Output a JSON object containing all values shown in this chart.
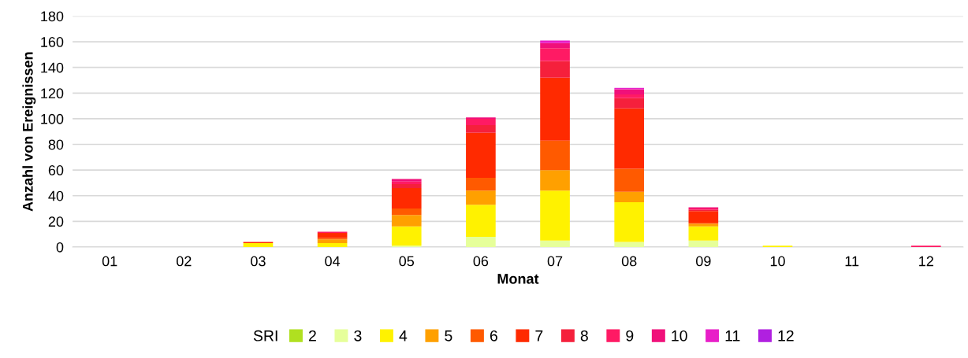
{
  "chart_data": {
    "type": "bar",
    "stacked": true,
    "xlabel": "Monat",
    "ylabel": "Anzahl von Ereignissen",
    "legend_title": "SRI",
    "legend": "bottom",
    "grid": "y",
    "categories": [
      "01",
      "02",
      "03",
      "04",
      "05",
      "06",
      "07",
      "08",
      "09",
      "10",
      "11",
      "12"
    ],
    "ylim": [
      0,
      180
    ],
    "yticks": [
      0,
      20,
      40,
      60,
      80,
      100,
      120,
      140,
      160,
      180
    ],
    "series": [
      {
        "name": "2",
        "color": "#b0e020",
        "values": [
          0,
          0,
          0,
          0,
          0,
          0,
          0,
          0,
          0,
          0,
          0,
          0
        ]
      },
      {
        "name": "3",
        "color": "#e6ff9a",
        "values": [
          0,
          0,
          0,
          0,
          1,
          8,
          5,
          4,
          5,
          0,
          0,
          0
        ]
      },
      {
        "name": "4",
        "color": "#fff200",
        "values": [
          0,
          0,
          3,
          3,
          15,
          25,
          39,
          31,
          11,
          1,
          0,
          0
        ]
      },
      {
        "name": "5",
        "color": "#ffa000",
        "values": [
          0,
          0,
          0,
          3,
          9,
          11,
          16,
          8,
          2,
          0,
          0,
          0
        ]
      },
      {
        "name": "6",
        "color": "#ff5a00",
        "values": [
          0,
          0,
          0,
          1,
          5,
          10,
          23,
          18,
          1,
          0,
          0,
          0
        ]
      },
      {
        "name": "7",
        "color": "#ff2a00",
        "values": [
          0,
          0,
          1,
          4,
          16,
          35,
          49,
          47,
          9,
          0,
          0,
          0
        ]
      },
      {
        "name": "8",
        "color": "#f5203c",
        "values": [
          0,
          0,
          0,
          0,
          3,
          6,
          13,
          8,
          1,
          0,
          0,
          0
        ]
      },
      {
        "name": "9",
        "color": "#ff1a64",
        "values": [
          0,
          0,
          0,
          1,
          2,
          5,
          10,
          3,
          1,
          0,
          0,
          1
        ]
      },
      {
        "name": "10",
        "color": "#f0107a",
        "values": [
          0,
          0,
          0,
          0,
          2,
          1,
          4,
          4,
          1,
          0,
          0,
          0
        ]
      },
      {
        "name": "11",
        "color": "#e81ec8",
        "values": [
          0,
          0,
          0,
          0,
          0,
          0,
          2,
          1,
          0,
          0,
          0,
          0
        ]
      },
      {
        "name": "12",
        "color": "#b020e0",
        "values": [
          0,
          0,
          0,
          0,
          0,
          0,
          0,
          0,
          0,
          0,
          0,
          0
        ]
      }
    ]
  }
}
